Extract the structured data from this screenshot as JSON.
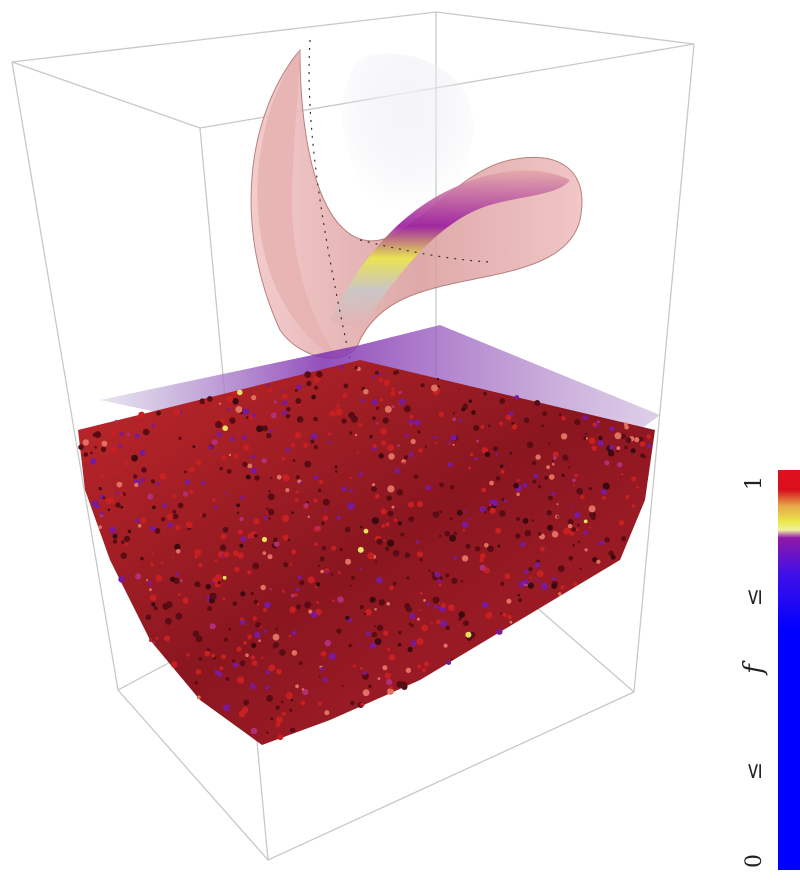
{
  "figure": {
    "colorbar": {
      "label_max": "1",
      "label_le_upper": "≤",
      "label_variable": "f",
      "label_le_lower": "≤",
      "label_min": "0",
      "colors": [
        "#e0101c",
        "#ebe84a",
        "#9018a8",
        "#0000ff"
      ]
    },
    "scene": {
      "surface_color": "#e8a8a8",
      "noise_red": "#b01818",
      "noise_purple": "#7a1a9a",
      "box_color": "#c8c8c8"
    }
  }
}
